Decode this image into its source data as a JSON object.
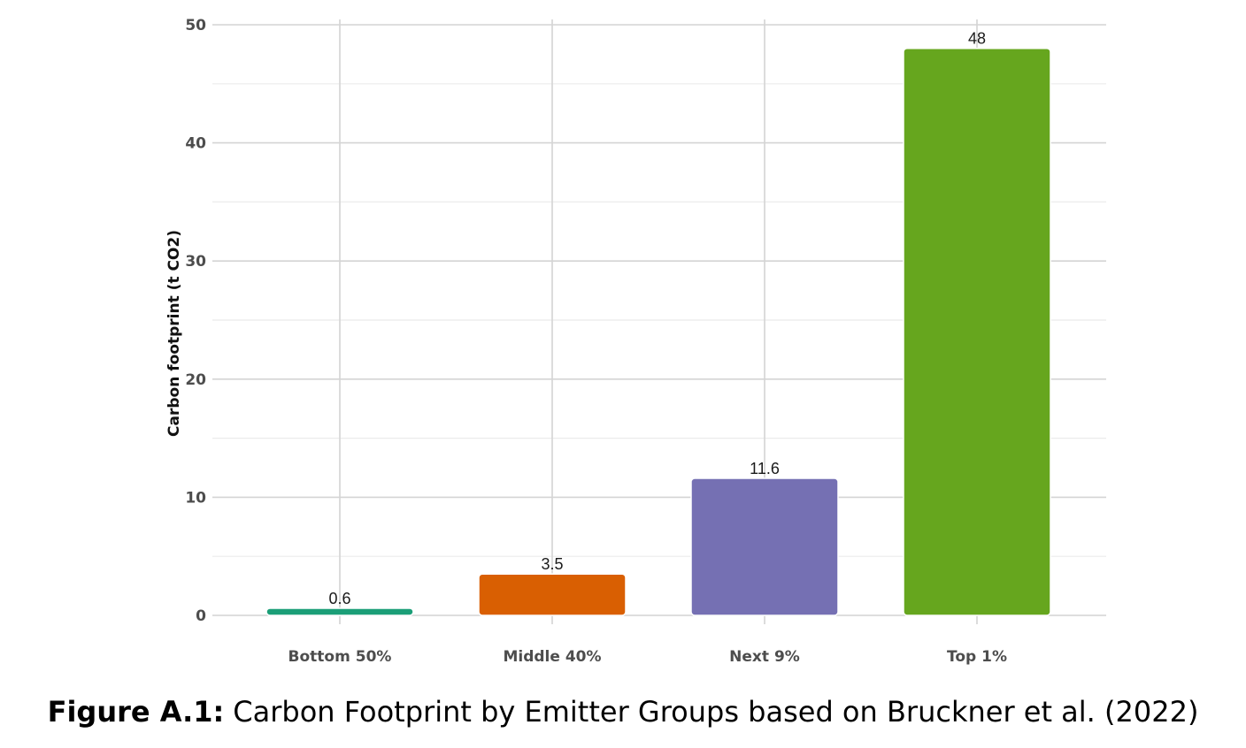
{
  "chart_data": {
    "type": "bar",
    "categories": [
      "Bottom 50%",
      "Middle 40%",
      "Next 9%",
      "Top 1%"
    ],
    "values": [
      0.6,
      3.5,
      11.6,
      48
    ],
    "value_labels": [
      "0.6",
      "3.5",
      "11.6",
      "48"
    ],
    "colors": [
      "#1b9e77",
      "#d95f02",
      "#7570b3",
      "#66a61e"
    ],
    "ylabel": "Carbon footprint (t CO2)",
    "xlabel": "",
    "ylim": [
      0,
      50
    ],
    "yticks": [
      0,
      10,
      20,
      30,
      40,
      50
    ],
    "grid": true,
    "legend": "none"
  },
  "caption": {
    "label": "Figure A.1:",
    "text": "Carbon Footprint by Emitter Groups based on Bruckner et al. (2022)"
  }
}
